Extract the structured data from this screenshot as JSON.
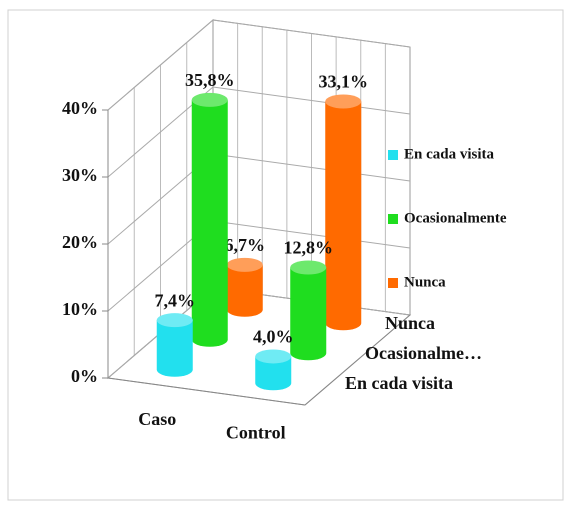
{
  "chart_data": {
    "type": "bar3d",
    "categories": [
      "Caso",
      "Control"
    ],
    "series": [
      {
        "name": "En cada visita",
        "color": "#22e0ee",
        "values": [
          7.4,
          4.0
        ],
        "value_labels": [
          "7,4%",
          "4,0%"
        ]
      },
      {
        "name": "Ocasionalmente",
        "color": "#1fdd1f",
        "values": [
          35.8,
          12.8
        ],
        "value_labels": [
          "35,8%",
          "12,8%"
        ]
      },
      {
        "name": "Nunca",
        "color": "#ff6a00",
        "values": [
          6.7,
          33.1
        ],
        "value_labels": [
          "6,7%",
          "33,1%"
        ]
      }
    ],
    "depth_labels": [
      "En cada visita",
      "Ocasionalme…",
      "Nunca"
    ],
    "ylim": [
      0,
      40
    ],
    "yticks": [
      {
        "value": 0,
        "label": "0%"
      },
      {
        "value": 10,
        "label": "10%"
      },
      {
        "value": 20,
        "label": "20%"
      },
      {
        "value": 30,
        "label": "30%"
      },
      {
        "value": 40,
        "label": "40%"
      }
    ],
    "grid": true,
    "legend": "right"
  }
}
